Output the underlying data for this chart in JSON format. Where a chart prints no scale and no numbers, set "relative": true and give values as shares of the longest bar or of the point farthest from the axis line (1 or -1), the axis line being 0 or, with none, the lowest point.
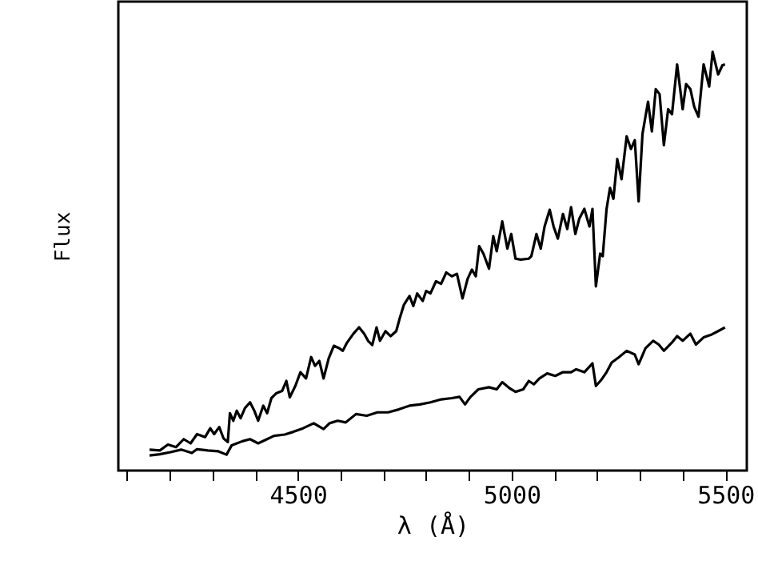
{
  "chart_data": {
    "type": "line",
    "xlabel": "λ (Å)",
    "ylabel": "Flux",
    "relative": true,
    "xlim": [
      4080,
      5550
    ],
    "xticks": [
      {
        "value": 4100,
        "label": null
      },
      {
        "value": 4200,
        "label": null
      },
      {
        "value": 4300,
        "label": null
      },
      {
        "value": 4400,
        "label": null
      },
      4500,
      {
        "value": 4600,
        "label": null
      },
      {
        "value": 4700,
        "label": null
      },
      {
        "value": 4800,
        "label": null
      },
      {
        "value": 4900,
        "label": null
      },
      5000,
      {
        "value": 5100,
        "label": null
      },
      {
        "value": 5200,
        "label": null
      },
      {
        "value": 5300,
        "label": null
      },
      {
        "value": 5400,
        "label": null
      },
      5500
    ],
    "grid": false,
    "marker": "none",
    "line_style": "solid",
    "series": [
      {
        "color": "#000000",
        "x": [
          4153,
          4177,
          4196,
          4215,
          4233,
          4249,
          4264,
          4283,
          4295,
          4304,
          4316,
          4326,
          4336,
          4341,
          4349,
          4357,
          4366,
          4376,
          4388,
          4398,
          4407,
          4419,
          4428,
          4438,
          4450,
          4463,
          4473,
          4481,
          4494,
          4506,
          4519,
          4531,
          4540,
          4550,
          4560,
          4572,
          4584,
          4597,
          4605,
          4614,
          4630,
          4643,
          4655,
          4664,
          4674,
          4684,
          4692,
          4705,
          4717,
          4730,
          4738,
          4748,
          4761,
          4770,
          4779,
          4792,
          4800,
          4810,
          4823,
          4835,
          4847,
          4860,
          4872,
          4885,
          4897,
          4907,
          4916,
          4924,
          4934,
          4947,
          4957,
          4965,
          4978,
          4990,
          4999,
          5009,
          5021,
          5040,
          5046,
          5058,
          5068,
          5077,
          5089,
          5098,
          5108,
          5120,
          5130,
          5139,
          5149,
          5158,
          5170,
          5182,
          5189,
          5197,
          5207,
          5213,
          5222,
          5230,
          5238,
          5247,
          5257,
          5269,
          5279,
          5288,
          5297,
          5306,
          5319,
          5328,
          5337,
          5346,
          5356,
          5366,
          5375,
          5387,
          5400,
          5408,
          5418,
          5427,
          5437,
          5449,
          5462,
          5470,
          5483,
          5493,
          5499
        ],
        "values": [
          0.05,
          0.048,
          0.062,
          0.056,
          0.075,
          0.065,
          0.087,
          0.08,
          0.101,
          0.087,
          0.104,
          0.077,
          0.068,
          0.137,
          0.119,
          0.143,
          0.125,
          0.149,
          0.163,
          0.143,
          0.119,
          0.155,
          0.137,
          0.173,
          0.185,
          0.19,
          0.214,
          0.175,
          0.202,
          0.235,
          0.22,
          0.271,
          0.25,
          0.262,
          0.22,
          0.268,
          0.298,
          0.292,
          0.286,
          0.304,
          0.327,
          0.342,
          0.327,
          0.31,
          0.3,
          0.342,
          0.31,
          0.333,
          0.321,
          0.333,
          0.363,
          0.396,
          0.417,
          0.393,
          0.423,
          0.405,
          0.429,
          0.423,
          0.452,
          0.446,
          0.473,
          0.464,
          0.47,
          0.411,
          0.458,
          0.48,
          0.464,
          0.536,
          0.518,
          0.482,
          0.56,
          0.524,
          0.595,
          0.53,
          0.565,
          0.506,
          0.504,
          0.506,
          0.512,
          0.565,
          0.53,
          0.583,
          0.623,
          0.583,
          0.554,
          0.613,
          0.577,
          0.629,
          0.565,
          0.601,
          0.625,
          0.583,
          0.625,
          0.44,
          0.518,
          0.512,
          0.625,
          0.675,
          0.649,
          0.744,
          0.696,
          0.798,
          0.768,
          0.789,
          0.643,
          0.804,
          0.881,
          0.81,
          0.911,
          0.899,
          0.777,
          0.863,
          0.851,
          0.97,
          0.863,
          0.923,
          0.911,
          0.869,
          0.845,
          0.97,
          0.917,
          1.0,
          0.946,
          0.968,
          0.97
        ]
      },
      {
        "color": "#000000",
        "x": [
          4153,
          4177,
          4202,
          4227,
          4252,
          4264,
          4289,
          4314,
          4333,
          4345,
          4370,
          4388,
          4407,
          4426,
          4444,
          4469,
          4488,
          4512,
          4537,
          4560,
          4574,
          4593,
          4612,
          4636,
          4661,
          4686,
          4711,
          4736,
          4761,
          4785,
          4810,
          4835,
          4860,
          4878,
          4891,
          4903,
          4922,
          4947,
          4965,
          4978,
          4996,
          5009,
          5027,
          5040,
          5052,
          5065,
          5083,
          5102,
          5120,
          5139,
          5151,
          5170,
          5189,
          5197,
          5210,
          5222,
          5234,
          5250,
          5269,
          5288,
          5297,
          5313,
          5331,
          5344,
          5356,
          5375,
          5387,
          5400,
          5418,
          5431,
          5449,
          5468,
          5483,
          5499
        ],
        "values": [
          0.036,
          0.039,
          0.044,
          0.05,
          0.042,
          0.051,
          0.048,
          0.046,
          0.038,
          0.06,
          0.07,
          0.075,
          0.065,
          0.074,
          0.083,
          0.086,
          0.092,
          0.101,
          0.113,
          0.099,
          0.113,
          0.119,
          0.115,
          0.135,
          0.131,
          0.139,
          0.139,
          0.146,
          0.155,
          0.158,
          0.163,
          0.17,
          0.173,
          0.176,
          0.158,
          0.175,
          0.194,
          0.199,
          0.194,
          0.211,
          0.196,
          0.188,
          0.194,
          0.214,
          0.206,
          0.22,
          0.232,
          0.226,
          0.235,
          0.235,
          0.242,
          0.235,
          0.256,
          0.202,
          0.217,
          0.235,
          0.258,
          0.27,
          0.286,
          0.277,
          0.254,
          0.292,
          0.31,
          0.301,
          0.286,
          0.306,
          0.321,
          0.31,
          0.327,
          0.301,
          0.318,
          0.325,
          0.333,
          0.342
        ]
      }
    ]
  }
}
